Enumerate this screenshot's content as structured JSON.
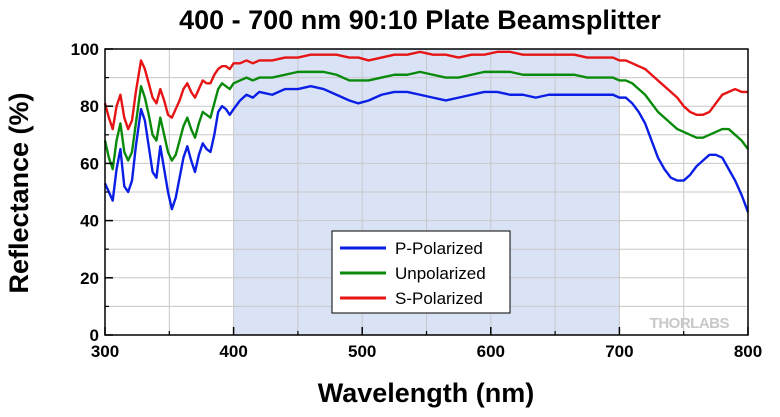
{
  "chart_data": {
    "type": "line",
    "title": "400 - 700 nm 90:10 Plate Beamsplitter",
    "xlabel": "Wavelength (nm)",
    "ylabel": "Reflectance (%)",
    "xlim": [
      300,
      800
    ],
    "ylim": [
      0,
      100
    ],
    "xticks": [
      300,
      400,
      500,
      600,
      700,
      800
    ],
    "yticks": [
      0,
      20,
      40,
      60,
      80,
      100
    ],
    "grid": true,
    "shaded_region": [
      400,
      700
    ],
    "shaded_color": "#dae3f5",
    "legend_position": "bottom-center",
    "watermark": "THORLABS",
    "series": [
      {
        "name": "P-Polarized",
        "color": "#0a1ee6",
        "points": [
          [
            300,
            53
          ],
          [
            303,
            50
          ],
          [
            306,
            47
          ],
          [
            309,
            58
          ],
          [
            312,
            65
          ],
          [
            315,
            52
          ],
          [
            318,
            50
          ],
          [
            321,
            54
          ],
          [
            324,
            66
          ],
          [
            328,
            79
          ],
          [
            331,
            75
          ],
          [
            334,
            66
          ],
          [
            337,
            57
          ],
          [
            340,
            55
          ],
          [
            343,
            66
          ],
          [
            346,
            58
          ],
          [
            349,
            50
          ],
          [
            352,
            44
          ],
          [
            355,
            48
          ],
          [
            358,
            55
          ],
          [
            361,
            62
          ],
          [
            364,
            66
          ],
          [
            367,
            61
          ],
          [
            370,
            57
          ],
          [
            373,
            63
          ],
          [
            376,
            67
          ],
          [
            379,
            65
          ],
          [
            382,
            64
          ],
          [
            385,
            70
          ],
          [
            388,
            78
          ],
          [
            391,
            80
          ],
          [
            394,
            79
          ],
          [
            397,
            77
          ],
          [
            400,
            79
          ],
          [
            405,
            82
          ],
          [
            410,
            84
          ],
          [
            415,
            83
          ],
          [
            420,
            85
          ],
          [
            430,
            84
          ],
          [
            440,
            86
          ],
          [
            450,
            86
          ],
          [
            460,
            87
          ],
          [
            470,
            86
          ],
          [
            480,
            84
          ],
          [
            490,
            82
          ],
          [
            497,
            81
          ],
          [
            505,
            82
          ],
          [
            515,
            84
          ],
          [
            525,
            85
          ],
          [
            535,
            85
          ],
          [
            545,
            84
          ],
          [
            555,
            83
          ],
          [
            565,
            82
          ],
          [
            575,
            83
          ],
          [
            585,
            84
          ],
          [
            595,
            85
          ],
          [
            605,
            85
          ],
          [
            615,
            84
          ],
          [
            625,
            84
          ],
          [
            635,
            83
          ],
          [
            645,
            84
          ],
          [
            655,
            84
          ],
          [
            665,
            84
          ],
          [
            675,
            84
          ],
          [
            685,
            84
          ],
          [
            695,
            84
          ],
          [
            700,
            83
          ],
          [
            705,
            83
          ],
          [
            710,
            81
          ],
          [
            715,
            78
          ],
          [
            720,
            74
          ],
          [
            725,
            68
          ],
          [
            730,
            62
          ],
          [
            735,
            58
          ],
          [
            740,
            55
          ],
          [
            745,
            54
          ],
          [
            750,
            54
          ],
          [
            755,
            56
          ],
          [
            760,
            59
          ],
          [
            765,
            61
          ],
          [
            770,
            63
          ],
          [
            775,
            63
          ],
          [
            780,
            62
          ],
          [
            785,
            58
          ],
          [
            790,
            54
          ],
          [
            795,
            49
          ],
          [
            800,
            43
          ]
        ]
      },
      {
        "name": "Unpolarized",
        "color": "#0a8a0a",
        "points": [
          [
            300,
            68
          ],
          [
            303,
            62
          ],
          [
            306,
            58
          ],
          [
            309,
            68
          ],
          [
            312,
            74
          ],
          [
            315,
            64
          ],
          [
            318,
            61
          ],
          [
            321,
            64
          ],
          [
            324,
            74
          ],
          [
            328,
            87
          ],
          [
            331,
            83
          ],
          [
            334,
            77
          ],
          [
            337,
            70
          ],
          [
            340,
            68
          ],
          [
            343,
            76
          ],
          [
            346,
            70
          ],
          [
            349,
            64
          ],
          [
            352,
            61
          ],
          [
            355,
            63
          ],
          [
            358,
            68
          ],
          [
            361,
            73
          ],
          [
            364,
            76
          ],
          [
            367,
            72
          ],
          [
            370,
            69
          ],
          [
            373,
            74
          ],
          [
            376,
            78
          ],
          [
            379,
            77
          ],
          [
            382,
            76
          ],
          [
            385,
            81
          ],
          [
            388,
            86
          ],
          [
            391,
            88
          ],
          [
            394,
            87
          ],
          [
            397,
            86
          ],
          [
            400,
            88
          ],
          [
            405,
            89
          ],
          [
            410,
            90
          ],
          [
            415,
            89
          ],
          [
            420,
            90
          ],
          [
            430,
            90
          ],
          [
            440,
            91
          ],
          [
            450,
            92
          ],
          [
            460,
            92
          ],
          [
            470,
            92
          ],
          [
            480,
            91
          ],
          [
            490,
            89
          ],
          [
            497,
            89
          ],
          [
            505,
            89
          ],
          [
            515,
            90
          ],
          [
            525,
            91
          ],
          [
            535,
            91
          ],
          [
            545,
            92
          ],
          [
            555,
            91
          ],
          [
            565,
            90
          ],
          [
            575,
            90
          ],
          [
            585,
            91
          ],
          [
            595,
            92
          ],
          [
            605,
            92
          ],
          [
            615,
            92
          ],
          [
            625,
            91
          ],
          [
            635,
            91
          ],
          [
            645,
            91
          ],
          [
            655,
            91
          ],
          [
            665,
            91
          ],
          [
            675,
            90
          ],
          [
            685,
            90
          ],
          [
            695,
            90
          ],
          [
            700,
            89
          ],
          [
            705,
            89
          ],
          [
            710,
            88
          ],
          [
            715,
            86
          ],
          [
            720,
            84
          ],
          [
            725,
            81
          ],
          [
            730,
            78
          ],
          [
            735,
            76
          ],
          [
            740,
            74
          ],
          [
            745,
            72
          ],
          [
            750,
            71
          ],
          [
            755,
            70
          ],
          [
            760,
            69
          ],
          [
            765,
            69
          ],
          [
            770,
            70
          ],
          [
            775,
            71
          ],
          [
            780,
            72
          ],
          [
            785,
            72
          ],
          [
            790,
            70
          ],
          [
            795,
            68
          ],
          [
            800,
            65
          ]
        ]
      },
      {
        "name": "S-Polarized",
        "color": "#e61414",
        "points": [
          [
            300,
            81
          ],
          [
            303,
            76
          ],
          [
            306,
            72
          ],
          [
            309,
            80
          ],
          [
            312,
            84
          ],
          [
            315,
            76
          ],
          [
            318,
            72
          ],
          [
            321,
            75
          ],
          [
            324,
            85
          ],
          [
            328,
            96
          ],
          [
            331,
            93
          ],
          [
            334,
            88
          ],
          [
            337,
            83
          ],
          [
            340,
            81
          ],
          [
            343,
            86
          ],
          [
            346,
            82
          ],
          [
            349,
            77
          ],
          [
            352,
            76
          ],
          [
            355,
            79
          ],
          [
            358,
            82
          ],
          [
            361,
            86
          ],
          [
            364,
            88
          ],
          [
            367,
            85
          ],
          [
            370,
            83
          ],
          [
            373,
            86
          ],
          [
            376,
            89
          ],
          [
            379,
            88
          ],
          [
            382,
            88
          ],
          [
            385,
            91
          ],
          [
            388,
            93
          ],
          [
            391,
            94
          ],
          [
            394,
            94
          ],
          [
            397,
            93
          ],
          [
            400,
            95
          ],
          [
            405,
            95
          ],
          [
            410,
            96
          ],
          [
            415,
            95
          ],
          [
            420,
            96
          ],
          [
            430,
            96
          ],
          [
            440,
            97
          ],
          [
            450,
            97
          ],
          [
            460,
            98
          ],
          [
            470,
            98
          ],
          [
            480,
            98
          ],
          [
            490,
            97
          ],
          [
            497,
            97
          ],
          [
            505,
            96
          ],
          [
            515,
            97
          ],
          [
            525,
            98
          ],
          [
            535,
            98
          ],
          [
            545,
            99
          ],
          [
            555,
            98
          ],
          [
            565,
            98
          ],
          [
            575,
            97
          ],
          [
            585,
            98
          ],
          [
            595,
            98
          ],
          [
            605,
            99
          ],
          [
            615,
            99
          ],
          [
            625,
            98
          ],
          [
            635,
            98
          ],
          [
            645,
            98
          ],
          [
            655,
            98
          ],
          [
            665,
            98
          ],
          [
            675,
            97
          ],
          [
            685,
            97
          ],
          [
            695,
            97
          ],
          [
            700,
            96
          ],
          [
            705,
            96
          ],
          [
            710,
            95
          ],
          [
            715,
            94
          ],
          [
            720,
            93
          ],
          [
            725,
            91
          ],
          [
            730,
            89
          ],
          [
            735,
            87
          ],
          [
            740,
            85
          ],
          [
            745,
            83
          ],
          [
            750,
            80
          ],
          [
            755,
            78
          ],
          [
            760,
            77
          ],
          [
            765,
            77
          ],
          [
            770,
            78
          ],
          [
            775,
            81
          ],
          [
            780,
            84
          ],
          [
            785,
            85
          ],
          [
            790,
            86
          ],
          [
            795,
            85
          ],
          [
            800,
            85
          ]
        ]
      }
    ]
  }
}
